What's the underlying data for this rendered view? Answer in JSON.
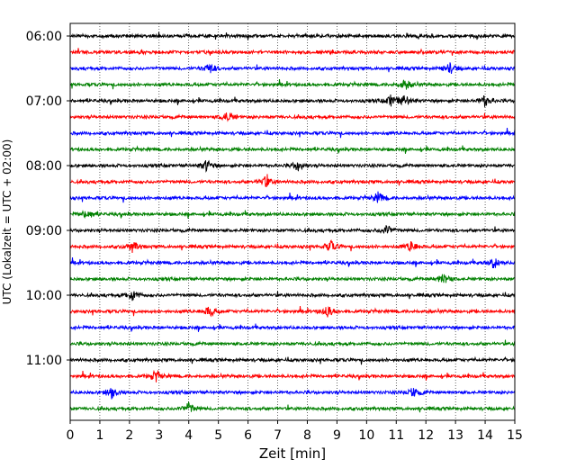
{
  "chart_data": {
    "type": "line",
    "subtype": "helicorder",
    "xlabel": "Zeit  [min]",
    "ylabel": "UTC (Lokalzeit = UTC + 02:00)",
    "xlim": [
      0,
      15
    ],
    "xticks": [
      "0",
      "1",
      "2",
      "3",
      "4",
      "5",
      "6",
      "7",
      "8",
      "9",
      "10",
      "11",
      "12",
      "13",
      "14",
      "15"
    ],
    "y_tick_labels": [
      "06:00",
      "07:00",
      "08:00",
      "09:00",
      "10:00",
      "11:00"
    ],
    "vertical_grid": "dotted",
    "line_minutes": 15,
    "trace_colors": [
      "#000000",
      "#ff0000",
      "#0000ff",
      "#008000"
    ],
    "traces": [
      {
        "start": "06:00",
        "color": "#000000",
        "events_min": []
      },
      {
        "start": "06:15",
        "color": "#ff0000",
        "events_min": []
      },
      {
        "start": "06:30",
        "color": "#0000ff",
        "events_min": [
          4.7,
          12.8
        ]
      },
      {
        "start": "06:45",
        "color": "#008000",
        "events_min": [
          11.3
        ]
      },
      {
        "start": "07:00",
        "color": "#000000",
        "events_min": [
          10.8,
          11.3,
          14.0
        ]
      },
      {
        "start": "07:15",
        "color": "#ff0000",
        "events_min": [
          5.3
        ]
      },
      {
        "start": "07:30",
        "color": "#0000ff",
        "events_min": []
      },
      {
        "start": "07:45",
        "color": "#008000",
        "events_min": []
      },
      {
        "start": "08:00",
        "color": "#000000",
        "events_min": [
          4.6,
          7.7
        ]
      },
      {
        "start": "08:15",
        "color": "#ff0000",
        "events_min": [
          6.6
        ]
      },
      {
        "start": "08:30",
        "color": "#0000ff",
        "events_min": [
          10.4
        ]
      },
      {
        "start": "08:45",
        "color": "#008000",
        "events_min": [
          0.6
        ]
      },
      {
        "start": "09:00",
        "color": "#000000",
        "events_min": [
          10.7
        ]
      },
      {
        "start": "09:15",
        "color": "#ff0000",
        "events_min": [
          2.1,
          8.8,
          11.5
        ]
      },
      {
        "start": "09:30",
        "color": "#0000ff",
        "events_min": [
          14.3
        ]
      },
      {
        "start": "09:45",
        "color": "#008000",
        "events_min": [
          12.6
        ]
      },
      {
        "start": "10:00",
        "color": "#000000",
        "events_min": [
          2.1
        ]
      },
      {
        "start": "10:15",
        "color": "#ff0000",
        "events_min": [
          4.7,
          8.7
        ]
      },
      {
        "start": "10:30",
        "color": "#0000ff",
        "events_min": []
      },
      {
        "start": "10:45",
        "color": "#008000",
        "events_min": []
      },
      {
        "start": "11:00",
        "color": "#000000",
        "events_min": []
      },
      {
        "start": "11:15",
        "color": "#ff0000",
        "events_min": [
          2.9
        ]
      },
      {
        "start": "11:30",
        "color": "#0000ff",
        "events_min": [
          1.4,
          11.6
        ]
      },
      {
        "start": "11:45",
        "color": "#008000",
        "events_min": [
          4.0
        ]
      }
    ]
  }
}
